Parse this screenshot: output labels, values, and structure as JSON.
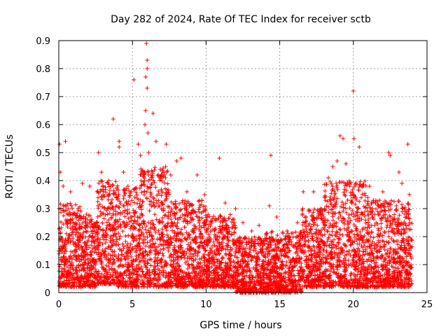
{
  "chart_data": {
    "type": "scatter",
    "title": "Day 282 of 2024, Rate Of TEC Index for receiver sctb",
    "xlabel": "GPS time / hours",
    "ylabel": "ROTI / TECUs",
    "xlim": [
      0,
      25
    ],
    "ylim": [
      0,
      0.9
    ],
    "xticks": [
      0,
      5,
      10,
      15,
      20,
      25
    ],
    "yticks": [
      0,
      0.1,
      0.2,
      0.3,
      0.4,
      0.5,
      0.6,
      0.7,
      0.8,
      0.9
    ],
    "xtick_labels": [
      "0",
      "5",
      "10",
      "15",
      "20",
      "25"
    ],
    "ytick_labels": [
      "0",
      "0.1",
      "0.2",
      "0.3",
      "0.4",
      "0.5",
      "0.6",
      "0.7",
      "0.8",
      "0.9"
    ],
    "grid": true,
    "marker": "+",
    "color": "#ff0000",
    "series": [
      {
        "name": "ROTI",
        "points": [
          [
            0.05,
            0.53
          ],
          [
            0.45,
            0.54
          ],
          [
            0.1,
            0.43
          ],
          [
            0.3,
            0.38
          ],
          [
            0.8,
            0.36
          ],
          [
            1.6,
            0.39
          ],
          [
            2.1,
            0.38
          ],
          [
            2.7,
            0.5
          ],
          [
            2.9,
            0.43
          ],
          [
            3.4,
            0.4
          ],
          [
            3.7,
            0.62
          ],
          [
            4.1,
            0.54
          ],
          [
            4.1,
            0.52
          ],
          [
            4.4,
            0.43
          ],
          [
            4.7,
            0.38
          ],
          [
            5.1,
            0.76
          ],
          [
            5.4,
            0.53
          ],
          [
            5.55,
            0.49
          ],
          [
            5.8,
            0.41
          ],
          [
            5.85,
            0.6
          ],
          [
            5.9,
            0.65
          ],
          [
            5.9,
            0.77
          ],
          [
            5.95,
            0.89
          ],
          [
            6.0,
            0.83
          ],
          [
            6.0,
            0.8
          ],
          [
            6.0,
            0.73
          ],
          [
            6.05,
            0.57
          ],
          [
            6.1,
            0.5
          ],
          [
            6.4,
            0.64
          ],
          [
            6.6,
            0.54
          ],
          [
            6.9,
            0.44
          ],
          [
            7.3,
            0.53
          ],
          [
            7.6,
            0.42
          ],
          [
            8.0,
            0.47
          ],
          [
            8.3,
            0.48
          ],
          [
            8.7,
            0.36
          ],
          [
            9.4,
            0.42
          ],
          [
            9.9,
            0.35
          ],
          [
            10.9,
            0.48
          ],
          [
            11.3,
            0.32
          ],
          [
            12.0,
            0.3
          ],
          [
            12.5,
            0.25
          ],
          [
            13.1,
            0.22
          ],
          [
            13.6,
            0.24
          ],
          [
            14.3,
            0.31
          ],
          [
            14.4,
            0.49
          ],
          [
            14.8,
            0.27
          ],
          [
            15.5,
            0.22
          ],
          [
            16.2,
            0.25
          ],
          [
            16.6,
            0.36
          ],
          [
            17.3,
            0.36
          ],
          [
            17.9,
            0.29
          ],
          [
            18.3,
            0.41
          ],
          [
            18.6,
            0.45
          ],
          [
            18.9,
            0.47
          ],
          [
            19.1,
            0.56
          ],
          [
            19.3,
            0.55
          ],
          [
            19.5,
            0.46
          ],
          [
            20.0,
            0.72
          ],
          [
            20.05,
            0.55
          ],
          [
            20.4,
            0.52
          ],
          [
            20.6,
            0.38
          ],
          [
            21.1,
            0.38
          ],
          [
            21.5,
            0.32
          ],
          [
            22.0,
            0.36
          ],
          [
            22.4,
            0.5
          ],
          [
            22.5,
            0.49
          ],
          [
            23.1,
            0.43
          ],
          [
            23.3,
            0.39
          ],
          [
            23.7,
            0.53
          ],
          [
            23.8,
            0.35
          ]
        ],
        "dense_band": {
          "description": "thousands of overlapping points filling the band",
          "segments": [
            {
              "x": [
                0.0,
                1.5
              ],
              "y_low": 0.02,
              "y_high": 0.32
            },
            {
              "x": [
                1.5,
                2.6
              ],
              "y_low": 0.02,
              "y_high": 0.28
            },
            {
              "x": [
                2.6,
                4.0
              ],
              "y_low": 0.03,
              "y_high": 0.4
            },
            {
              "x": [
                4.0,
                5.5
              ],
              "y_low": 0.02,
              "y_high": 0.38
            },
            {
              "x": [
                5.5,
                7.5
              ],
              "y_low": 0.02,
              "y_high": 0.45
            },
            {
              "x": [
                7.5,
                10.0
              ],
              "y_low": 0.02,
              "y_high": 0.33
            },
            {
              "x": [
                10.0,
                12.0
              ],
              "y_low": 0.02,
              "y_high": 0.28
            },
            {
              "x": [
                12.0,
                14.0
              ],
              "y_low": 0.0,
              "y_high": 0.2
            },
            {
              "x": [
                14.0,
                16.5
              ],
              "y_low": 0.0,
              "y_high": 0.22
            },
            {
              "x": [
                16.5,
                18.0
              ],
              "y_low": 0.02,
              "y_high": 0.3
            },
            {
              "x": [
                18.0,
                21.0
              ],
              "y_low": 0.02,
              "y_high": 0.4
            },
            {
              "x": [
                21.0,
                24.0
              ],
              "y_low": 0.02,
              "y_high": 0.33
            }
          ]
        }
      }
    ]
  }
}
